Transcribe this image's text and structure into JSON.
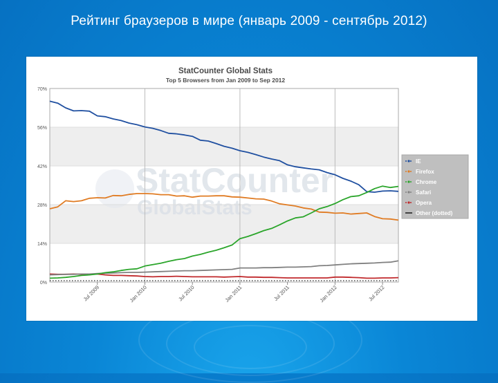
{
  "slide": {
    "title": "Рейтинг браузеров в мире (январь 2009 - сентябрь 2012)"
  },
  "watermark": {
    "main": "StatCounter",
    "sub": "GlobalStats"
  },
  "colors": {
    "background": "#0a86d6",
    "IE": "#1f4fa0",
    "Firefox": "#e07b22",
    "Chrome": "#2aa52a",
    "Safari": "#808080",
    "Opera": "#c0282b",
    "Other": "#222222"
  },
  "chart_data": {
    "type": "line",
    "title": "StatCounter Global Stats",
    "subtitle": "Top 5 Browsers from Jan 2009 to Sep 2012",
    "xlabel": "",
    "ylabel": "",
    "ylim": [
      0,
      70
    ],
    "y_ticks": [
      "0%",
      "14%",
      "28%",
      "42%",
      "56%",
      "70%"
    ],
    "x_ticks": [
      "Jul 2009",
      "Jan 2010",
      "Jul 2010",
      "Jan 2011",
      "Jul 2011",
      "Jan 2012",
      "Jul 2012"
    ],
    "x_tick_months": [
      6,
      12,
      18,
      24,
      30,
      36,
      42
    ],
    "x_months": [
      0,
      1,
      2,
      3,
      4,
      5,
      6,
      7,
      8,
      9,
      10,
      11,
      12,
      13,
      14,
      15,
      16,
      17,
      18,
      19,
      20,
      21,
      22,
      23,
      24,
      25,
      26,
      27,
      28,
      29,
      30,
      31,
      32,
      33,
      34,
      35,
      36,
      37,
      38,
      39,
      40,
      41,
      42,
      43,
      44
    ],
    "x_range_months": [
      0,
      44
    ],
    "grid": true,
    "legend_position": "right",
    "series": [
      {
        "name": "IE",
        "style": "solid",
        "values": [
          65.4,
          64.7,
          63.0,
          61.9,
          62.0,
          61.8,
          60.1,
          59.8,
          59.0,
          58.4,
          57.5,
          56.9,
          56.1,
          55.6,
          54.8,
          53.8,
          53.6,
          53.2,
          52.7,
          51.3,
          51.0,
          50.1,
          49.1,
          48.4,
          47.5,
          46.9,
          46.1,
          45.2,
          44.5,
          43.9,
          42.4,
          41.7,
          41.3,
          40.9,
          40.6,
          39.6,
          38.8,
          37.5,
          36.5,
          35.2,
          32.7,
          32.5,
          32.9,
          33.0,
          32.8
        ]
      },
      {
        "name": "Firefox",
        "style": "solid",
        "values": [
          26.5,
          27.2,
          29.4,
          29.1,
          29.4,
          30.3,
          30.5,
          30.4,
          31.3,
          31.2,
          31.7,
          32.0,
          32.0,
          31.9,
          31.6,
          31.6,
          31.1,
          31.2,
          30.7,
          31.1,
          31.1,
          31.2,
          31.2,
          30.8,
          30.7,
          30.4,
          30.1,
          30.0,
          29.3,
          28.3,
          27.9,
          27.5,
          26.8,
          26.4,
          25.3,
          25.2,
          24.9,
          25.0,
          24.6,
          24.8,
          25.0,
          23.7,
          22.9,
          22.8,
          22.4
        ]
      },
      {
        "name": "Chrome",
        "style": "solid",
        "values": [
          1.4,
          1.5,
          1.7,
          2.0,
          2.4,
          2.6,
          2.9,
          3.4,
          3.7,
          4.2,
          4.6,
          4.8,
          5.8,
          6.3,
          6.8,
          7.5,
          8.1,
          8.5,
          9.4,
          10.0,
          10.8,
          11.5,
          12.4,
          13.4,
          15.7,
          16.5,
          17.5,
          18.6,
          19.4,
          20.7,
          22.1,
          23.2,
          23.6,
          25.0,
          26.5,
          27.3,
          28.4,
          29.8,
          30.9,
          31.2,
          32.4,
          33.8,
          34.7,
          34.2,
          34.6
        ]
      },
      {
        "name": "Safari",
        "style": "solid",
        "values": [
          2.6,
          2.7,
          2.8,
          2.8,
          2.9,
          2.9,
          3.1,
          3.2,
          3.3,
          3.4,
          3.5,
          3.5,
          3.6,
          3.7,
          3.8,
          3.9,
          4.0,
          4.1,
          4.1,
          4.2,
          4.3,
          4.4,
          4.5,
          4.6,
          5.1,
          5.1,
          5.1,
          5.2,
          5.2,
          5.3,
          5.4,
          5.4,
          5.5,
          5.6,
          5.9,
          6.0,
          6.2,
          6.4,
          6.6,
          6.7,
          6.8,
          6.9,
          7.1,
          7.2,
          7.7
        ]
      },
      {
        "name": "Opera",
        "style": "solid",
        "values": [
          2.9,
          2.8,
          2.8,
          2.9,
          2.8,
          2.9,
          2.9,
          2.6,
          2.4,
          2.4,
          2.3,
          2.2,
          2.0,
          1.9,
          2.0,
          2.0,
          2.1,
          2.0,
          1.9,
          1.9,
          1.9,
          1.9,
          1.8,
          1.9,
          2.0,
          1.8,
          1.8,
          1.7,
          1.7,
          1.6,
          1.5,
          1.5,
          1.5,
          1.5,
          1.5,
          1.5,
          1.8,
          1.8,
          1.7,
          1.6,
          1.4,
          1.4,
          1.5,
          1.5,
          1.6
        ]
      },
      {
        "name": "Other (dotted)",
        "style": "dotted",
        "values": [
          0.5,
          0.5,
          0.5,
          0.5,
          0.5,
          0.5,
          0.5,
          0.5,
          0.5,
          0.5,
          0.5,
          0.5,
          0.5,
          0.5,
          0.5,
          0.5,
          0.5,
          0.5,
          0.5,
          0.5,
          0.5,
          0.5,
          0.5,
          0.5,
          0.5,
          0.5,
          0.5,
          0.5,
          0.5,
          0.5,
          0.5,
          0.5,
          0.5,
          0.5,
          0.5,
          0.5,
          0.5,
          0.5,
          0.5,
          0.5,
          0.5,
          0.5,
          0.5,
          0.5,
          0.5
        ]
      }
    ],
    "legend": [
      "IE",
      "Firefox",
      "Chrome",
      "Safari",
      "Opera",
      "Other (dotted)"
    ]
  }
}
